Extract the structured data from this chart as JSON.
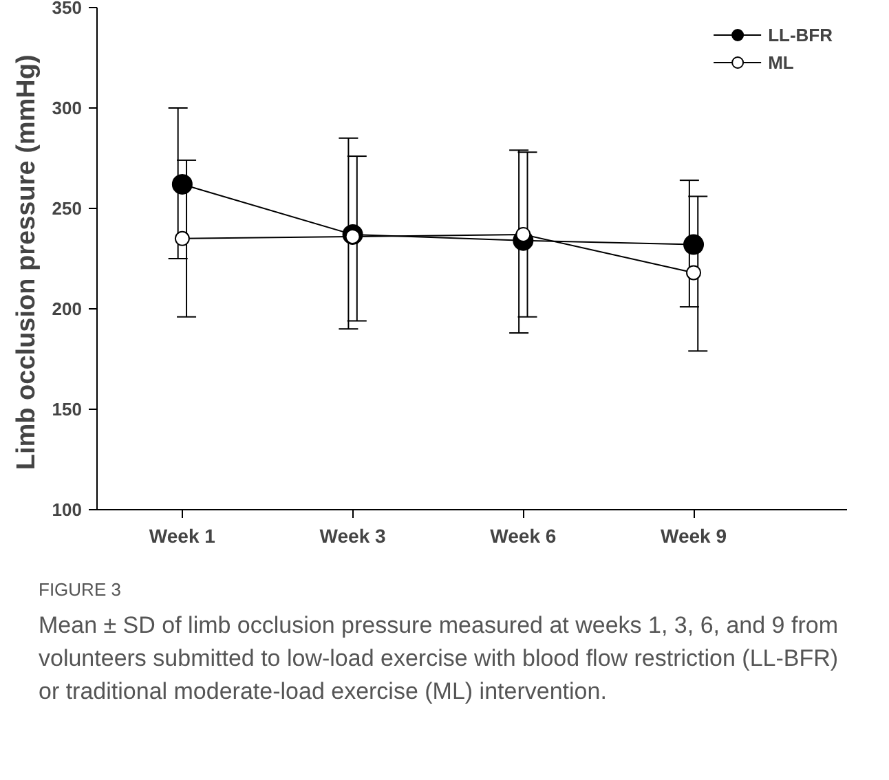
{
  "chart_data": {
    "type": "line",
    "ylabel": "Limb occlusion pressure  (mmHg)",
    "categories": [
      "Week 1",
      "Week 3",
      "Week 6",
      "Week 9"
    ],
    "series": [
      {
        "name": "LL-BFR",
        "color": "#000000",
        "values": [
          262,
          237,
          234,
          232
        ],
        "errors": [
          [
            225,
            300
          ],
          [
            190,
            285
          ],
          [
            188,
            279
          ],
          [
            201,
            264
          ]
        ]
      },
      {
        "name": "ML",
        "color": "#ffffff",
        "values": [
          235,
          236,
          237,
          218
        ],
        "errors": [
          [
            196,
            274
          ],
          [
            194,
            276
          ],
          [
            196,
            278
          ],
          [
            179,
            256
          ]
        ]
      }
    ],
    "ylim": [
      100,
      350
    ],
    "yticks": [
      100,
      150,
      200,
      250,
      300,
      350
    ],
    "grid": false,
    "legend": "top right",
    "marker": "circle",
    "line_style": "solid",
    "annotations": [
      "FIGURE 3",
      "Mean ± SD of limb occlusion pressure measured at weeks 1, 3, 6, and 9 from volunteers submitted to low-load exercise with blood flow restriction (LL-BFR) or traditional moderate-load exercise (ML) intervention."
    ]
  }
}
